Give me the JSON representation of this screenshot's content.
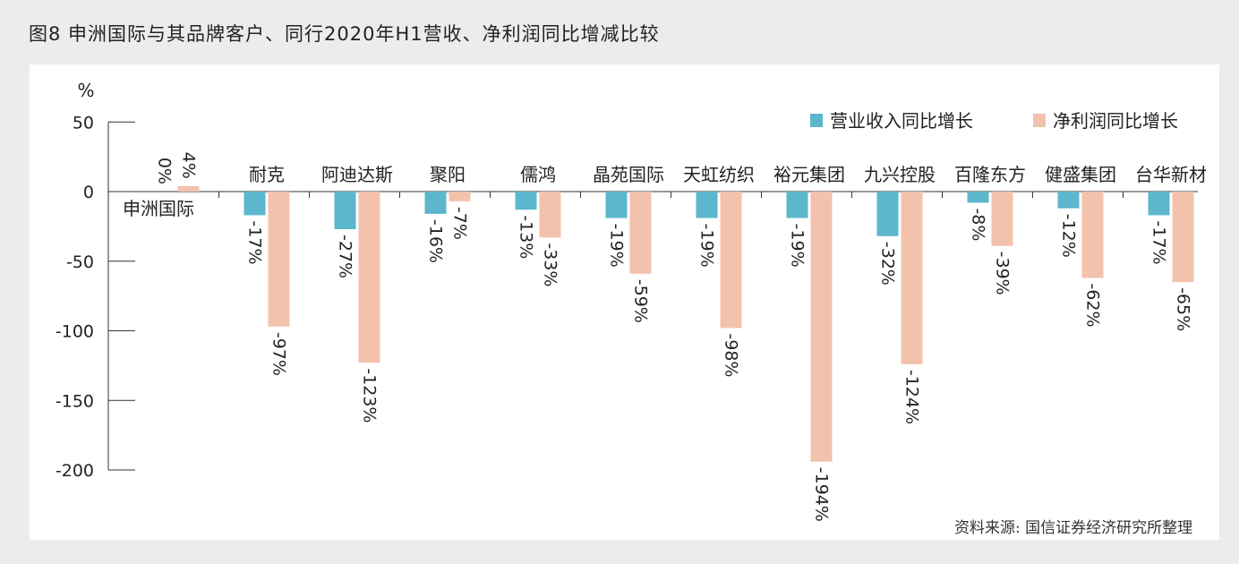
{
  "figure": {
    "title": "图8  申洲国际与其品牌客户、同行2020年H1营收、净利润同比增减比较",
    "source": "资料来源: 国信证券经济研究所整理"
  },
  "chart_data": {
    "type": "bar",
    "title": "图8  申洲国际与其品牌客户、同行2020年H1营收、净利润同比增减比较",
    "ylabel": "%",
    "xlabel": "",
    "ylim": [
      -200,
      50
    ],
    "yticks": [
      50,
      0,
      -50,
      -100,
      -150,
      -200
    ],
    "ytick_labels": [
      "50",
      "0",
      "-50",
      "-100",
      "-150",
      "-200"
    ],
    "grid": false,
    "legend_position": "top-right",
    "categories": [
      "申洲国际",
      "耐克",
      "阿迪达斯",
      "聚阳",
      "儒鸿",
      "晶苑国际",
      "天虹纺织",
      "裕元集团",
      "九兴控股",
      "百隆东方",
      "健盛集团",
      "台华新材"
    ],
    "series": [
      {
        "name": "营业收入同比增长",
        "color": "#5cb7cc",
        "values": [
          0,
          -17,
          -27,
          -16,
          -13,
          -19,
          -19,
          -19,
          -32,
          -8,
          -12,
          -17
        ],
        "labels": [
          "0%",
          "-17%",
          "-27%",
          "-16%",
          "-13%",
          "-19%",
          "-19%",
          "-19%",
          "-32%",
          "-8%",
          "-12%",
          "-17%"
        ]
      },
      {
        "name": "净利润同比增长",
        "color": "#f3c2ac",
        "values": [
          4,
          -97,
          -123,
          -7,
          -33,
          -59,
          -98,
          -194,
          -124,
          -39,
          -62,
          -65
        ],
        "labels": [
          "4%",
          "-97%",
          "-123%",
          "-7%",
          "-33%",
          "-59%",
          "-98%",
          "-194%",
          "-124%",
          "-39%",
          "-62%",
          "-65%"
        ]
      }
    ]
  }
}
